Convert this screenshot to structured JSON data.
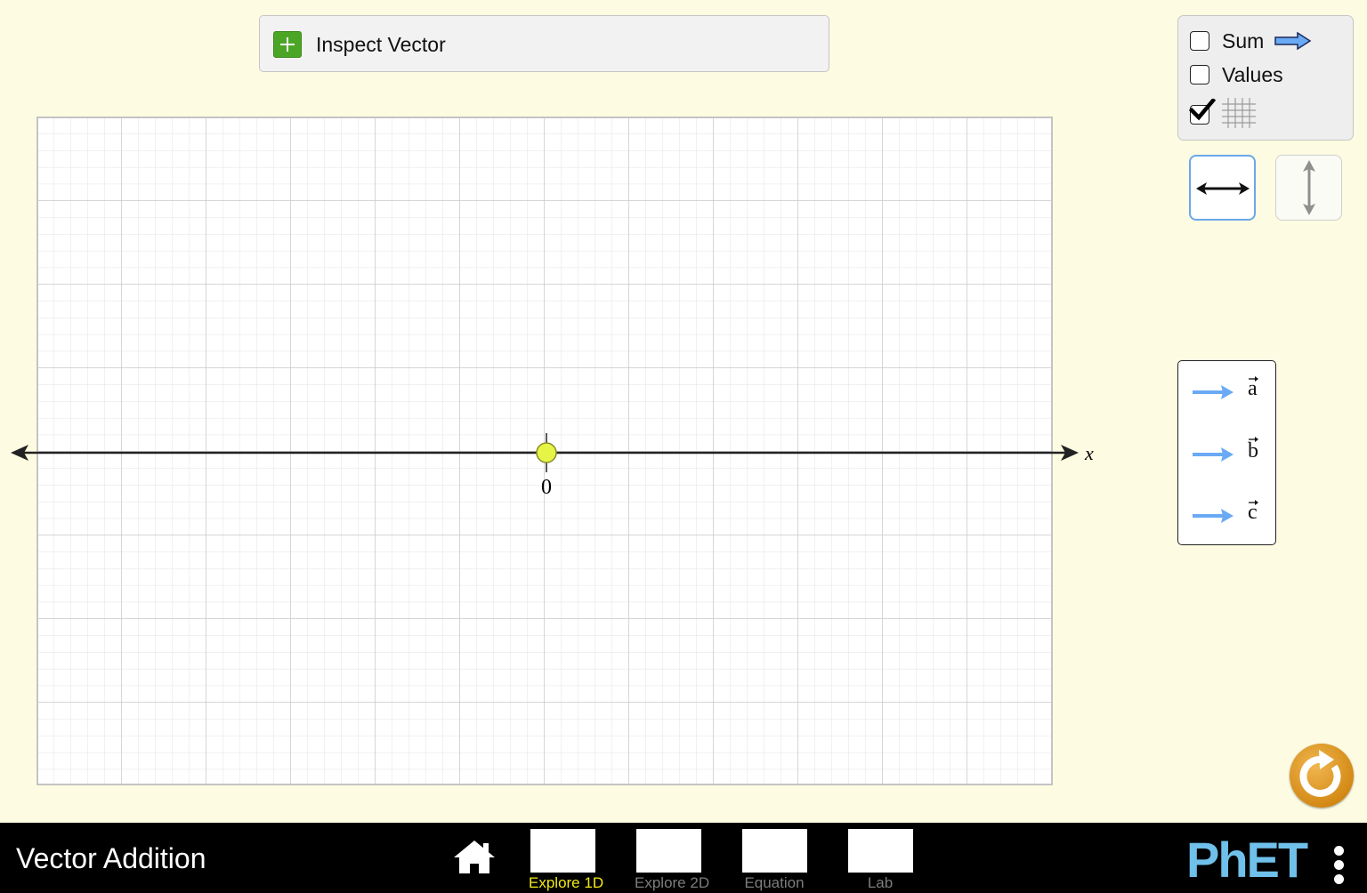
{
  "inspect_panel": {
    "label": "Inspect Vector",
    "expand_icon": "plus-icon"
  },
  "graph": {
    "axis_label": "x",
    "origin_label": "0",
    "grid_visible": true,
    "colors": {
      "grid_major": "#c9c9c9",
      "grid_minor": "#e3e3e3",
      "origin_point": "#e6f545",
      "axis": "#222222"
    }
  },
  "options": {
    "sum": {
      "label": "Sum",
      "checked": false,
      "icon": "sum-arrow-icon"
    },
    "values": {
      "label": "Values",
      "checked": false
    },
    "grid": {
      "checked": true,
      "icon": "grid-icon"
    }
  },
  "orientation": {
    "horizontal": {
      "selected": true,
      "icon": "horizontal-double-arrow-icon"
    },
    "vertical": {
      "selected": false,
      "icon": "vertical-double-arrow-icon"
    }
  },
  "vector_toolbox": {
    "vectors": [
      {
        "symbol": "a",
        "color": "#6aaaf5"
      },
      {
        "symbol": "b",
        "color": "#6aaaf5"
      },
      {
        "symbol": "c",
        "color": "#6aaaf5"
      }
    ]
  },
  "reset": {
    "icon": "reset-all-icon"
  },
  "navbar": {
    "title": "Vector Addition",
    "home_icon": "home-icon",
    "screens": [
      {
        "label": "Explore 1D",
        "active": true
      },
      {
        "label": "Explore 2D",
        "active": false
      },
      {
        "label": "Equation",
        "active": false
      },
      {
        "label": "Lab",
        "active": false
      }
    ],
    "logo_text": "PhET",
    "menu_icon": "kebab-menu-icon"
  }
}
